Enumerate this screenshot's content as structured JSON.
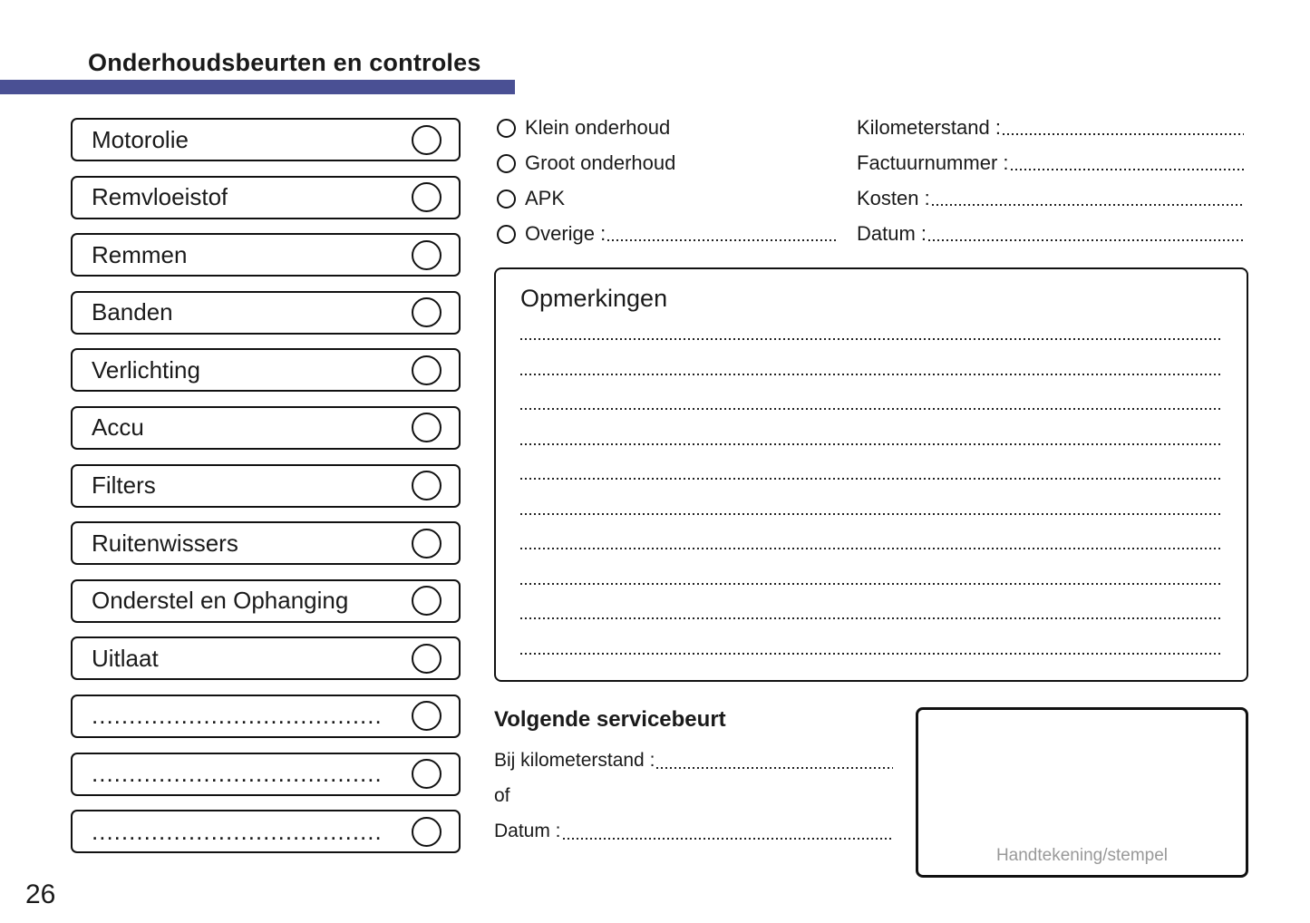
{
  "header": {
    "title": "Onderhoudsbeurten en controles",
    "accent_color": "#4a5094"
  },
  "checklist": {
    "items": [
      {
        "label": "Motorolie"
      },
      {
        "label": "Remvloeistof"
      },
      {
        "label": "Remmen"
      },
      {
        "label": "Banden"
      },
      {
        "label": "Verlichting"
      },
      {
        "label": "Accu"
      },
      {
        "label": "Filters"
      },
      {
        "label": "Ruitenwissers"
      },
      {
        "label": "Onderstel en Ophanging"
      },
      {
        "label": "Uitlaat"
      },
      {
        "label": "......................................."
      },
      {
        "label": "......................................."
      },
      {
        "label": "......................................."
      }
    ]
  },
  "service_type": {
    "options": [
      {
        "label": "Klein onderhoud"
      },
      {
        "label": "Groot onderhoud"
      },
      {
        "label": "APK"
      },
      {
        "label": "Overige :"
      }
    ]
  },
  "fields": {
    "rows": [
      {
        "label": "Kilometerstand :",
        "value": ""
      },
      {
        "label": "Factuurnummer :",
        "value": ""
      },
      {
        "label": "Kosten :",
        "value": ""
      },
      {
        "label": "Datum :",
        "value": ""
      }
    ]
  },
  "remarks": {
    "title": "Opmerkingen",
    "line_count": 10
  },
  "next_service": {
    "title": "Volgende servicebeurt",
    "km_label": "Bij kilometerstand :",
    "or_label": "of",
    "date_label": "Datum :"
  },
  "signature": {
    "label": "Handtekening/stempel",
    "text_color": "#999999"
  },
  "page_number": "26"
}
